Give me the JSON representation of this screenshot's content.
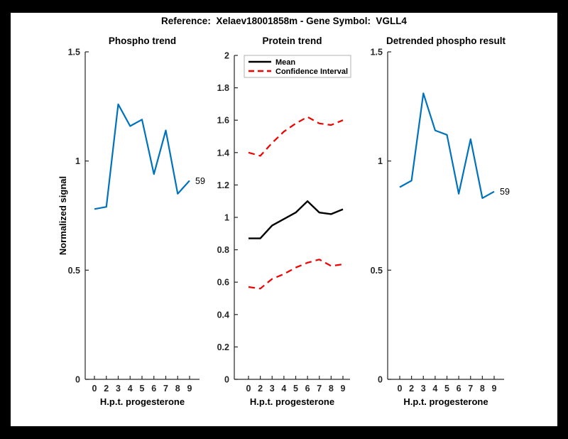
{
  "header": {
    "title": "Reference:  Xelaev18001858m - Gene Symbol:  VGLL4"
  },
  "colors": {
    "phospho_blue": "#0072BD",
    "mean_black": "#000000",
    "ci_red": "#F10000",
    "axis_gray": "#262626",
    "legend_border": "#B0B0B0"
  },
  "chart_data": [
    {
      "type": "line",
      "title": "Phospho trend",
      "xlabel": "H.p.t. progesterone",
      "ylabel": "Normalized signal",
      "categories": [
        "0",
        "2",
        "3",
        "4",
        "5",
        "6",
        "7",
        "8",
        "9"
      ],
      "ylim": [
        0,
        1.5
      ],
      "yticks": [
        0,
        0.5,
        1,
        1.5
      ],
      "ytick_labels": [
        "0",
        "0.5",
        "1",
        "1.5"
      ],
      "grid": false,
      "series": [
        {
          "name": "phospho-signal",
          "color": "#0072BD",
          "dash": "solid",
          "width": 2.2,
          "values": [
            0.78,
            0.79,
            1.26,
            1.16,
            1.19,
            0.94,
            1.14,
            0.85,
            0.91
          ]
        }
      ],
      "end_label": "59"
    },
    {
      "type": "line",
      "title": "Protein trend",
      "xlabel": "H.p.t. progesterone",
      "ylabel": "",
      "categories": [
        "0",
        "2",
        "3",
        "4",
        "5",
        "6",
        "7",
        "8",
        "9"
      ],
      "ylim": [
        0,
        2
      ],
      "yticks": [
        0,
        0.2,
        0.4,
        0.6,
        0.8,
        1,
        1.2,
        1.4,
        1.6,
        1.8,
        2
      ],
      "ytick_labels": [
        "0",
        "0.2",
        "0.4",
        "0.6",
        "0.8",
        "1",
        "1.2",
        "1.4",
        "1.6",
        "1.8",
        "2"
      ],
      "grid": false,
      "legend": {
        "position": "top-left",
        "entries": [
          {
            "label": "Mean",
            "color": "#000000",
            "dash": "solid"
          },
          {
            "label": "Confidence Interval",
            "color": "#F10000",
            "dash": "dashed"
          }
        ]
      },
      "series": [
        {
          "name": "mean",
          "color": "#000000",
          "dash": "solid",
          "width": 2.4,
          "values": [
            0.87,
            0.87,
            0.95,
            0.99,
            1.03,
            1.1,
            1.03,
            1.02,
            1.05
          ]
        },
        {
          "name": "ci-upper",
          "color": "#F10000",
          "dash": "dashed",
          "width": 2.2,
          "values": [
            1.4,
            1.38,
            1.46,
            1.53,
            1.58,
            1.62,
            1.58,
            1.57,
            1.6
          ]
        },
        {
          "name": "ci-lower",
          "color": "#F10000",
          "dash": "dashed",
          "width": 2.2,
          "values": [
            0.57,
            0.56,
            0.62,
            0.65,
            0.69,
            0.72,
            0.74,
            0.7,
            0.71
          ]
        }
      ]
    },
    {
      "type": "line",
      "title": "Detrended phospho result",
      "xlabel": "H.p.t. progesterone",
      "ylabel": "",
      "categories": [
        "0",
        "2",
        "3",
        "4",
        "5",
        "6",
        "7",
        "8",
        "9"
      ],
      "ylim": [
        0,
        1.5
      ],
      "yticks": [
        0,
        0.5,
        1,
        1.5
      ],
      "ytick_labels": [
        "0",
        "0.5",
        "1",
        "1.5"
      ],
      "grid": false,
      "series": [
        {
          "name": "detrended-phospho",
          "color": "#0072BD",
          "dash": "solid",
          "width": 2.2,
          "values": [
            0.88,
            0.91,
            1.31,
            1.14,
            1.12,
            0.85,
            1.1,
            0.83,
            0.86
          ]
        }
      ],
      "end_label": "59"
    }
  ]
}
